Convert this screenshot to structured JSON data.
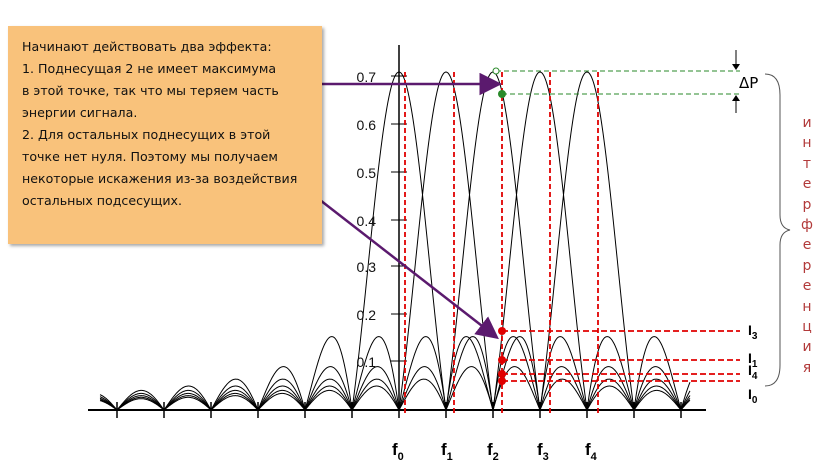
{
  "note": {
    "lines": [
      "Начинают действовать два эффекта:",
      "1. Поднесущая 2 не имеет максимума",
      "в этой точке, так что мы теряем часть",
      "энергии сигнала.",
      "2. Для остальных поднесущих в этой",
      "точке нет нуля. Поэтому мы получаем",
      "некоторые искажения из-за воздействия",
      "остальных подсесущих."
    ]
  },
  "y_ticks": [
    "0.1",
    "0.2",
    "0.3",
    "0.4",
    "0.5",
    "0.6",
    "0.7"
  ],
  "freq_labels": [
    {
      "main": "f",
      "sub": "0"
    },
    {
      "main": "f",
      "sub": "1"
    },
    {
      "main": "f",
      "sub": "2"
    },
    {
      "main": "f",
      "sub": "3"
    },
    {
      "main": "f",
      "sub": "4"
    }
  ],
  "interference_labels": [
    {
      "main": "I",
      "sub": "3"
    },
    {
      "main": "I",
      "sub": "1"
    },
    {
      "main": "I",
      "sub": "4"
    },
    {
      "main": "I",
      "sub": "0"
    }
  ],
  "delta_p_label": "ΔP",
  "interference_word": [
    "и",
    "н",
    "т",
    "е",
    "р",
    "ф",
    "е",
    "р",
    "е",
    "н",
    "ц",
    "и",
    "я"
  ],
  "colors": {
    "note_background": "#f9c27b",
    "curve": "#000000",
    "marker_line": "#e00000",
    "delta_guide": "#2a8a2a",
    "arrow": "#5b1a6e",
    "interference_text": "#b23a3a"
  }
}
